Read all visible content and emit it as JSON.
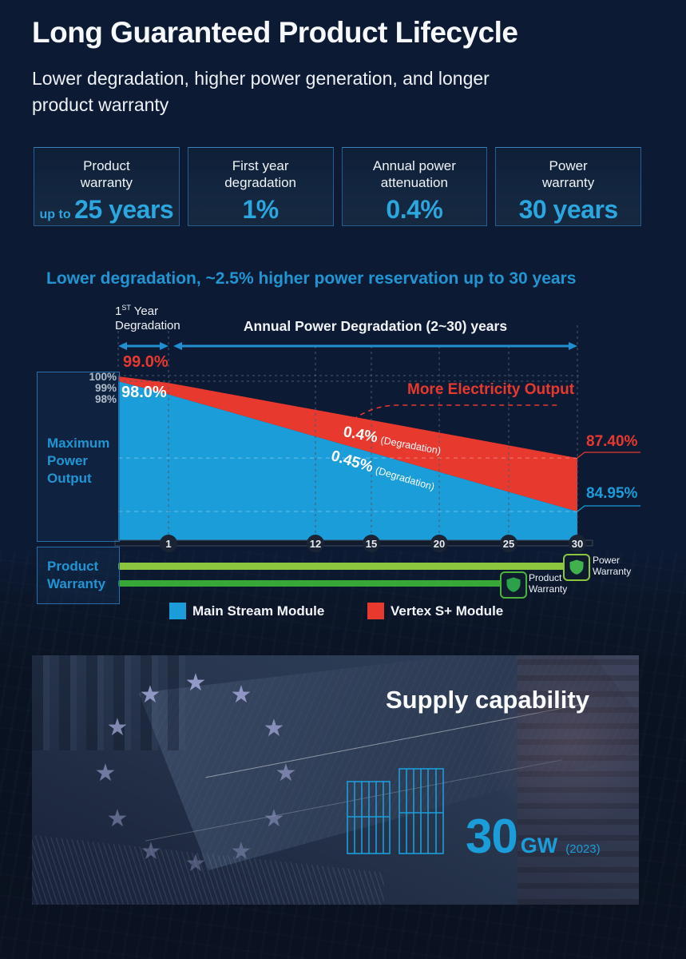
{
  "header": {
    "title": "Long Guaranteed Product Lifecycle",
    "subtitle_line1": "Lower degradation, higher power generation, and longer",
    "subtitle_line2": "product warranty"
  },
  "stats": [
    {
      "label_line1": "Product",
      "label_line2": "warranty",
      "prefix": "up to ",
      "value": "25 years"
    },
    {
      "label_line1": "First year",
      "label_line2": "degradation",
      "prefix": "",
      "value": "1%"
    },
    {
      "label_line1": "Annual power",
      "label_line2": "attenuation",
      "prefix": "",
      "value": "0.4%"
    },
    {
      "label_line1": "Power",
      "label_line2": "warranty",
      "prefix": "",
      "value": "30 years"
    }
  ],
  "section_heading": "Lower degradation, ~2.5% higher power reservation up to 30 years",
  "chart": {
    "first_year": {
      "base": "1",
      "sup": "ST",
      "rest": " Year",
      "line2": "Degradation"
    },
    "annual_label": "Annual Power Degradation (2~30) years",
    "y_labels": [
      "100%",
      "99%",
      "98%"
    ],
    "red_start_label": "99.0%",
    "blue_start_label": "98.0%",
    "more_output_label": "More Electricity Output",
    "red_rate": "0.4%",
    "red_rate_note": "(Degradation)",
    "blue_rate": "0.45%",
    "blue_rate_note": "(Degradation)",
    "red_end_label": "87.40%",
    "blue_end_label": "84.95%",
    "max_power_label": "Maximum Power Output",
    "product_warranty_label": "Product Warranty",
    "power_bar_label": "Power Warranty",
    "product_bar_label": "Product Warranty",
    "power_bar_icon": "shield-icon",
    "product_bar_icon": "shield-icon",
    "legend": [
      {
        "label": "Main Stream Module",
        "color": "#1b9dd9"
      },
      {
        "label": "Vertex S+ Module",
        "color": "#e8392f"
      }
    ]
  },
  "chart_data": {
    "type": "area",
    "title": "Lower degradation, ~2.5% higher power reservation up to 30 years",
    "xlabel": "years",
    "ylabel": "Maximum Power Output",
    "xlim": [
      0,
      30
    ],
    "x_ticks": [
      1,
      12,
      15,
      20,
      25,
      30
    ],
    "grid": true,
    "legend_position": "bottom",
    "series": [
      {
        "name": "Vertex S+ Module",
        "color": "#e8392f",
        "first_year_degradation_pct": 1.0,
        "annual_degradation_pct": 0.4,
        "values": [
          {
            "year": 0,
            "pct": 100
          },
          {
            "year": 1,
            "pct": 99.0
          },
          {
            "year": 30,
            "pct": 87.4
          }
        ]
      },
      {
        "name": "Main Stream Module",
        "color": "#1b9dd9",
        "first_year_degradation_pct": 2.0,
        "annual_degradation_pct": 0.45,
        "values": [
          {
            "year": 0,
            "pct": 100
          },
          {
            "year": 1,
            "pct": 98.0
          },
          {
            "year": 30,
            "pct": 84.95
          }
        ]
      }
    ],
    "warranty_bars": [
      {
        "label": "Power Warranty",
        "end_year": 30,
        "color": "#8cc63f"
      },
      {
        "label": "Product Warranty",
        "end_year": 25,
        "color": "#37a838"
      }
    ]
  },
  "supply": {
    "heading": "Supply capability",
    "value": "30",
    "unit": "GW",
    "year_note": "(2023)",
    "star_glyph": "★",
    "panel_icon": "solar-panel-icon"
  }
}
